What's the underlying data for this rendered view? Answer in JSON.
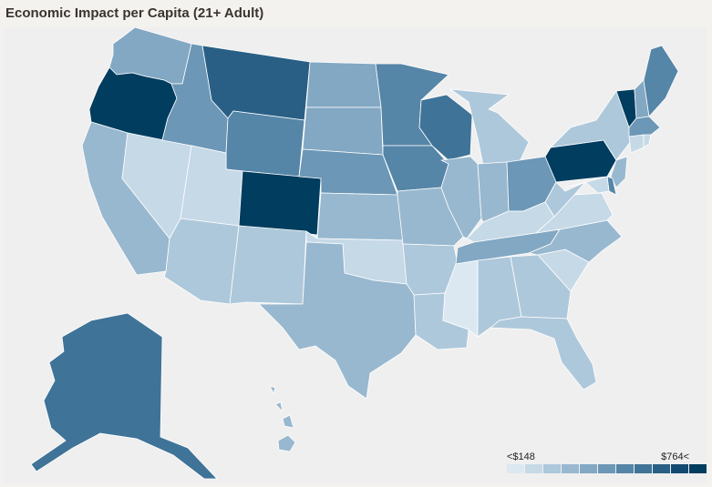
{
  "title": "Economic Impact per Capita (21+ Adult)",
  "legend": {
    "min_label": "<$148",
    "max_label": "$764<",
    "colors": [
      "#dce8f1",
      "#c6d9e7",
      "#aec8db",
      "#98b8cf",
      "#82a8c3",
      "#6c97b6",
      "#5585a7",
      "#3f7398",
      "#295f85",
      "#134b70",
      "#003d5f"
    ]
  },
  "states": [
    {
      "id": "WA",
      "level": 4
    },
    {
      "id": "OR",
      "level": 10
    },
    {
      "id": "CA",
      "level": 3
    },
    {
      "id": "NV",
      "level": 1
    },
    {
      "id": "ID",
      "level": 5
    },
    {
      "id": "MT",
      "level": 8
    },
    {
      "id": "WY",
      "level": 6
    },
    {
      "id": "UT",
      "level": 1
    },
    {
      "id": "AZ",
      "level": 2
    },
    {
      "id": "CO",
      "level": 10
    },
    {
      "id": "NM",
      "level": 2
    },
    {
      "id": "ND",
      "level": 4
    },
    {
      "id": "SD",
      "level": 4
    },
    {
      "id": "NE",
      "level": 5
    },
    {
      "id": "KS",
      "level": 3
    },
    {
      "id": "OK",
      "level": 1
    },
    {
      "id": "TX",
      "level": 3
    },
    {
      "id": "MN",
      "level": 6
    },
    {
      "id": "IA",
      "level": 6
    },
    {
      "id": "MO",
      "level": 3
    },
    {
      "id": "AR",
      "level": 2
    },
    {
      "id": "LA",
      "level": 2
    },
    {
      "id": "WI",
      "level": 7
    },
    {
      "id": "IL",
      "level": 3
    },
    {
      "id": "MI",
      "level": 2
    },
    {
      "id": "IN",
      "level": 3
    },
    {
      "id": "OH",
      "level": 5
    },
    {
      "id": "KY",
      "level": 1
    },
    {
      "id": "TN",
      "level": 4
    },
    {
      "id": "MS",
      "level": 0
    },
    {
      "id": "AL",
      "level": 2
    },
    {
      "id": "GA",
      "level": 2
    },
    {
      "id": "FL",
      "level": 2
    },
    {
      "id": "SC",
      "level": 1
    },
    {
      "id": "NC",
      "level": 3
    },
    {
      "id": "VA",
      "level": 1
    },
    {
      "id": "WV",
      "level": 2
    },
    {
      "id": "PA",
      "level": 10
    },
    {
      "id": "NY",
      "level": 2
    },
    {
      "id": "VT",
      "level": 10
    },
    {
      "id": "NH",
      "level": 4
    },
    {
      "id": "ME",
      "level": 6
    },
    {
      "id": "MA",
      "level": 5
    },
    {
      "id": "CT",
      "level": 1
    },
    {
      "id": "RI",
      "level": 1
    },
    {
      "id": "NJ",
      "level": 3
    },
    {
      "id": "DE",
      "level": 6
    },
    {
      "id": "MD",
      "level": 1
    },
    {
      "id": "AK",
      "level": 7
    },
    {
      "id": "HI",
      "level": 3
    }
  ]
}
